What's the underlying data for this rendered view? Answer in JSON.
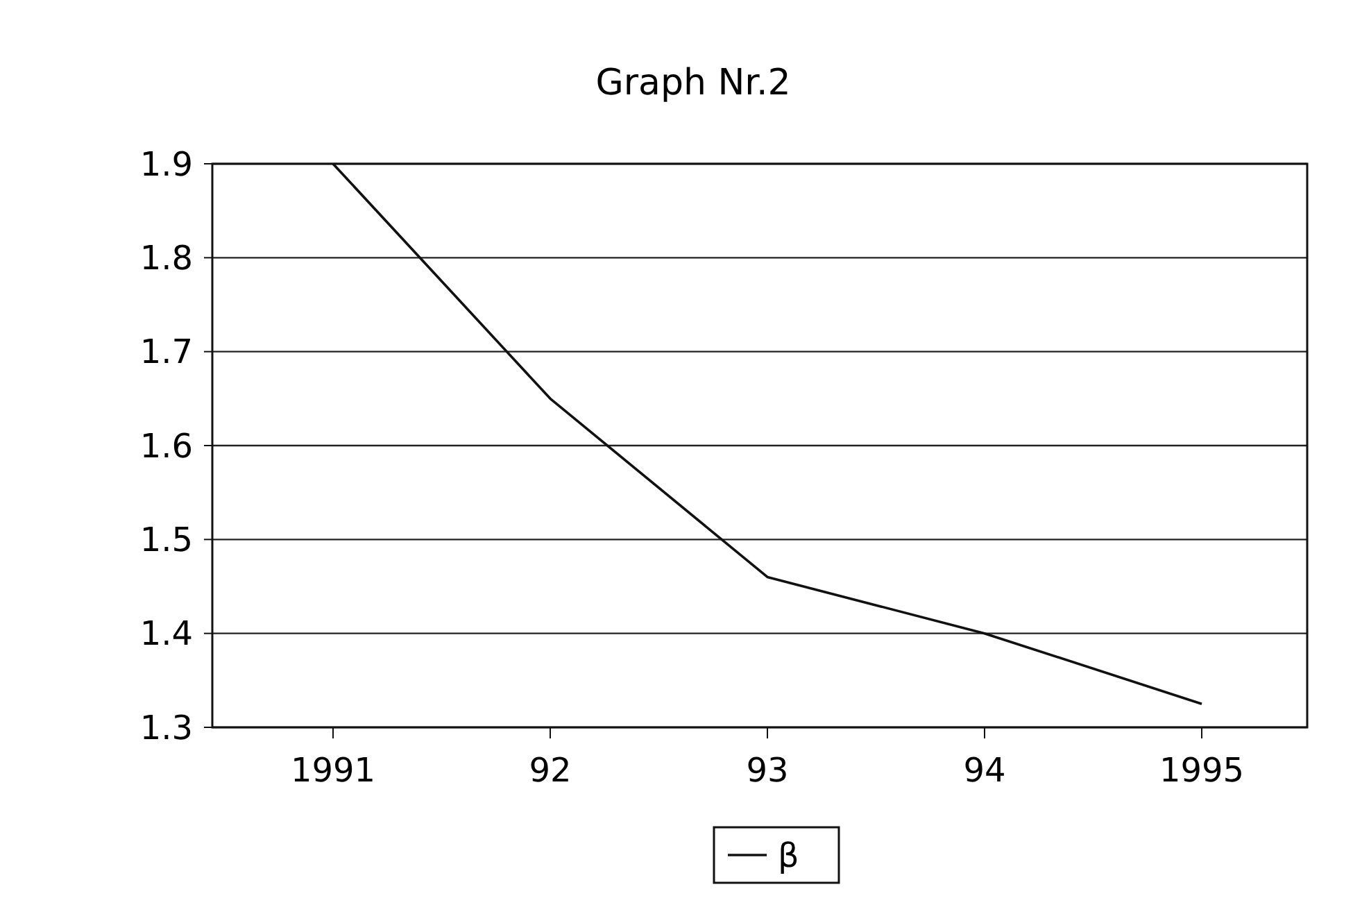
{
  "chart_data": {
    "type": "line",
    "title": "Graph Nr.2",
    "categories": [
      "1991",
      "92",
      "93",
      "94",
      "1995"
    ],
    "series": [
      {
        "name": "β",
        "color": "#111111",
        "values": [
          1.9,
          1.65,
          1.46,
          1.4,
          1.325
        ]
      }
    ],
    "ylim": [
      1.3,
      1.9
    ],
    "yticks": [
      1.3,
      1.4,
      1.5,
      1.6,
      1.7,
      1.8,
      1.9
    ],
    "grid": "y",
    "legend": "bottom",
    "marker": "none",
    "line_style": "solid"
  }
}
